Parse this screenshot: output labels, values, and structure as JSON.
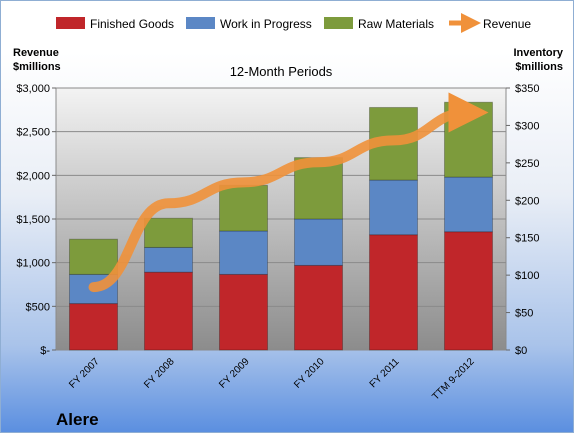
{
  "company": "Alere",
  "chart_data": {
    "type": "bar",
    "stacked": true,
    "title": "12-Month Periods",
    "categories": [
      "FY 2007",
      "FY 2008",
      "FY 2009",
      "FY 2010",
      "FY 2011",
      "TTM 9-2012"
    ],
    "series": [
      {
        "name": "Finished Goods",
        "color": "#c0262a",
        "axis": "right",
        "values": [
          62,
          104,
          101,
          113,
          154,
          158
        ]
      },
      {
        "name": "Work in Progress",
        "color": "#5b87c5",
        "axis": "right",
        "values": [
          39,
          33,
          58,
          62,
          73,
          73
        ]
      },
      {
        "name": "Raw Materials",
        "color": "#7d9b3c",
        "axis": "right",
        "values": [
          47,
          39,
          61,
          82,
          97,
          100
        ]
      }
    ],
    "line_series": {
      "name": "Revenue",
      "color": "#f0913a",
      "axis": "left",
      "values": [
        720,
        1680,
        1920,
        2150,
        2400,
        2720
      ]
    },
    "left_axis": {
      "label_line1": "Revenue",
      "label_line2": "$millions",
      "ylim": [
        0,
        3000
      ],
      "ticks": [
        0,
        500,
        1000,
        1500,
        2000,
        2500,
        3000
      ],
      "tick_labels": [
        "$-",
        "$500",
        "$1,000",
        "$1,500",
        "$2,000",
        "$2,500",
        "$3,000"
      ]
    },
    "right_axis": {
      "label_line1": "Inventory",
      "label_line2": "$millions",
      "ylim": [
        0,
        350
      ],
      "ticks": [
        0,
        50,
        100,
        150,
        200,
        250,
        300,
        350
      ],
      "tick_labels": [
        "$0",
        "$50",
        "$100",
        "$150",
        "$200",
        "$250",
        "$300",
        "$350"
      ]
    },
    "legend_position": "top",
    "grid": true
  }
}
